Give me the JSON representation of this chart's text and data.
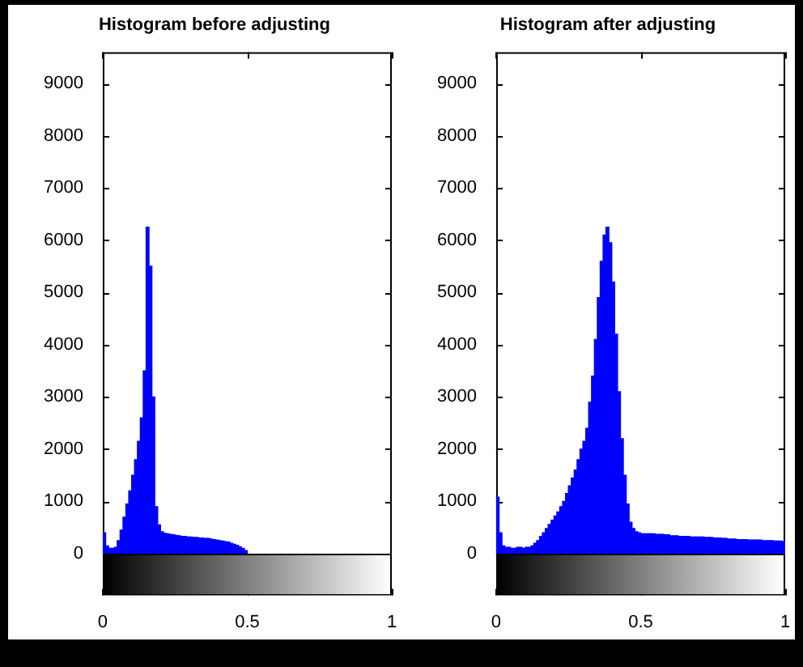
{
  "chart_data": [
    {
      "type": "histogram",
      "title": "Histogram before adjusting",
      "color": "#0000ff",
      "bins": [
        0,
        0.01,
        0.02,
        0.03,
        0.04,
        0.05,
        0.06,
        0.07,
        0.08,
        0.09,
        0.1,
        0.11,
        0.12,
        0.13,
        0.14,
        0.15,
        0.16,
        0.17,
        0.18,
        0.19,
        0.2,
        0.21,
        0.22,
        0.23,
        0.24,
        0.25,
        0.26,
        0.27,
        0.28,
        0.29,
        0.3,
        0.31,
        0.32,
        0.33,
        0.34,
        0.35,
        0.36,
        0.37,
        0.38,
        0.39,
        0.4,
        0.41,
        0.42,
        0.43,
        0.44,
        0.45,
        0.46,
        0.47,
        0.48,
        0.49,
        0.5
      ],
      "values": [
        400,
        150,
        100,
        100,
        120,
        250,
        450,
        700,
        950,
        1200,
        1500,
        1800,
        2150,
        2600,
        3500,
        6250,
        5500,
        3000,
        900,
        550,
        420,
        390,
        380,
        370,
        360,
        350,
        340,
        330,
        330,
        320,
        320,
        310,
        310,
        300,
        300,
        290,
        290,
        280,
        270,
        260,
        250,
        240,
        230,
        220,
        200,
        180,
        160,
        130,
        100,
        60
      ],
      "xlim": [
        0,
        1
      ],
      "xticks": [
        0,
        0.5,
        1
      ],
      "ylim": [
        -800,
        9600
      ],
      "yticks": [
        0,
        1000,
        2000,
        3000,
        4000,
        5000,
        6000,
        7000,
        8000,
        9000
      ]
    },
    {
      "type": "histogram",
      "title": "Histogram after adjusting",
      "color": "#0000ff",
      "bins": [
        0,
        0.01,
        0.02,
        0.03,
        0.04,
        0.05,
        0.06,
        0.07,
        0.08,
        0.09,
        0.1,
        0.11,
        0.12,
        0.13,
        0.14,
        0.15,
        0.16,
        0.17,
        0.18,
        0.19,
        0.2,
        0.21,
        0.22,
        0.23,
        0.24,
        0.25,
        0.26,
        0.27,
        0.28,
        0.29,
        0.3,
        0.31,
        0.32,
        0.33,
        0.34,
        0.35,
        0.36,
        0.37,
        0.38,
        0.39,
        0.4,
        0.41,
        0.42,
        0.43,
        0.44,
        0.45,
        0.46,
        0.47,
        0.48,
        0.49,
        0.5,
        0.51,
        0.52,
        0.53,
        0.54,
        0.55,
        0.56,
        0.57,
        0.58,
        0.59,
        0.6,
        0.61,
        0.62,
        0.63,
        0.64,
        0.65,
        0.66,
        0.67,
        0.68,
        0.69,
        0.7,
        0.71,
        0.72,
        0.73,
        0.74,
        0.75,
        0.76,
        0.77,
        0.78,
        0.79,
        0.8,
        0.81,
        0.82,
        0.83,
        0.84,
        0.85,
        0.86,
        0.87,
        0.88,
        0.89,
        0.9,
        0.91,
        0.92,
        0.93,
        0.94,
        0.95,
        0.96,
        0.97,
        0.98,
        0.99,
        1
      ],
      "values": [
        1080,
        400,
        150,
        120,
        120,
        100,
        100,
        120,
        120,
        100,
        120,
        120,
        150,
        200,
        250,
        330,
        400,
        480,
        560,
        640,
        720,
        800,
        900,
        1000,
        1150,
        1300,
        1450,
        1600,
        1800,
        2000,
        2150,
        2400,
        2900,
        3400,
        4100,
        4900,
        5600,
        6100,
        6250,
        5950,
        5200,
        4200,
        3100,
        2200,
        1500,
        950,
        600,
        480,
        420,
        400,
        380,
        380,
        380,
        380,
        380,
        370,
        370,
        370,
        360,
        360,
        340,
        340,
        340,
        330,
        330,
        330,
        330,
        320,
        320,
        320,
        320,
        320,
        310,
        310,
        310,
        300,
        300,
        300,
        290,
        290,
        280,
        280,
        280,
        270,
        270,
        270,
        270,
        260,
        260,
        260,
        260,
        260,
        250,
        250,
        250,
        250,
        240,
        240,
        240,
        230
      ],
      "xlim": [
        0,
        1
      ],
      "xticks": [
        0,
        0.5,
        1
      ],
      "ylim": [
        -800,
        9600
      ],
      "yticks": [
        0,
        1000,
        2000,
        3000,
        4000,
        5000,
        6000,
        7000,
        8000,
        9000
      ]
    }
  ]
}
